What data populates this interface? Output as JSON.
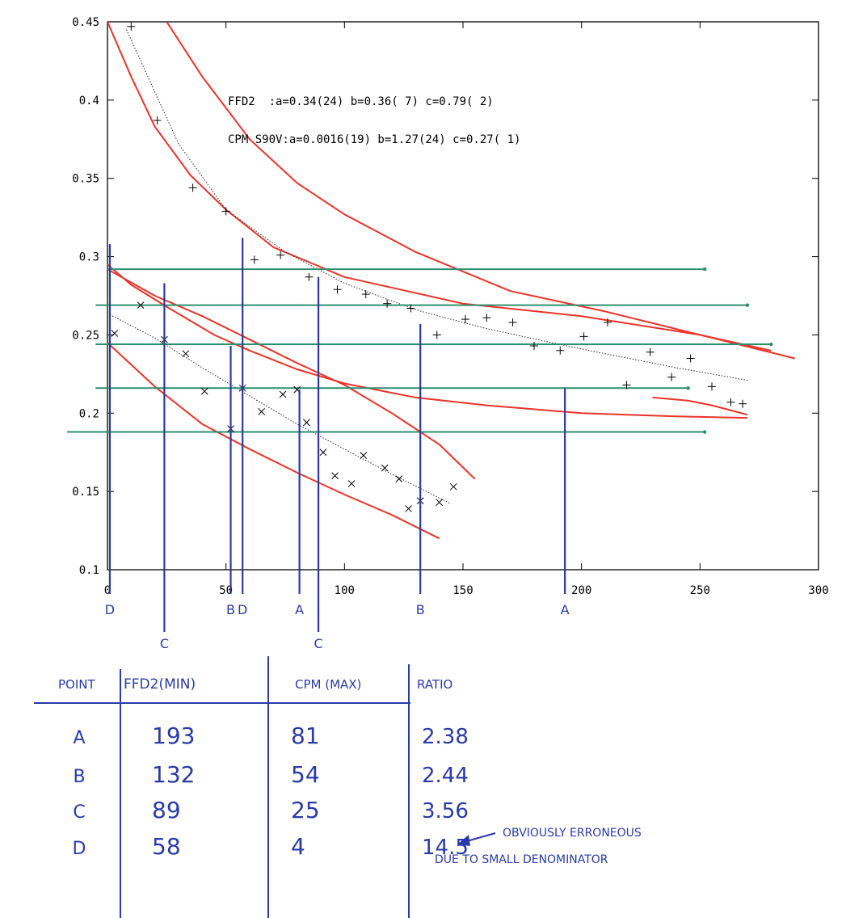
{
  "chart_data": {
    "type": "scatter",
    "xlim": [
      0,
      300
    ],
    "ylim": [
      0.1,
      0.45
    ],
    "x_ticks": [
      "0",
      "50",
      "100",
      "150",
      "200",
      "250",
      "300"
    ],
    "y_ticks": [
      "0.1",
      "0.15",
      "0.2",
      "0.25",
      "0.3",
      "0.35",
      "0.4",
      "0.45"
    ],
    "grid": false,
    "annotations": [
      "FFD2  :a=0.34(24) b=0.36( 7) c=0.79( 2)",
      "CPM S90V:a=0.0016(19) b=1.27(24) c=0.27( 1)"
    ],
    "series": [
      {
        "marker": "+",
        "color": "#000000",
        "points": [
          [
            10,
            0.447
          ],
          [
            21,
            0.387
          ],
          [
            36,
            0.344
          ],
          [
            50,
            0.329
          ],
          [
            62,
            0.298
          ],
          [
            73,
            0.301
          ],
          [
            85,
            0.287
          ],
          [
            97,
            0.279
          ],
          [
            109,
            0.276
          ],
          [
            118,
            0.27
          ],
          [
            128,
            0.267
          ],
          [
            139,
            0.25
          ],
          [
            151,
            0.26
          ],
          [
            160,
            0.261
          ],
          [
            171,
            0.258
          ],
          [
            180,
            0.243
          ],
          [
            191,
            0.24
          ],
          [
            201,
            0.249
          ],
          [
            211,
            0.258
          ],
          [
            219,
            0.218
          ],
          [
            229,
            0.239
          ],
          [
            238,
            0.223
          ],
          [
            246,
            0.235
          ],
          [
            255,
            0.217
          ],
          [
            263,
            0.207
          ],
          [
            268,
            0.206
          ]
        ]
      },
      {
        "marker": "x",
        "color": "#000000",
        "points": [
          [
            3,
            0.251
          ],
          [
            14,
            0.269
          ],
          [
            24,
            0.247
          ],
          [
            33,
            0.238
          ],
          [
            41,
            0.214
          ],
          [
            52,
            0.19
          ],
          [
            57,
            0.216
          ],
          [
            65,
            0.201
          ],
          [
            74,
            0.212
          ],
          [
            80,
            0.215
          ],
          [
            84,
            0.194
          ],
          [
            91,
            0.175
          ],
          [
            96,
            0.16
          ],
          [
            103,
            0.155
          ],
          [
            108,
            0.173
          ],
          [
            117,
            0.165
          ],
          [
            123,
            0.158
          ],
          [
            127,
            0.139
          ],
          [
            132,
            0.144
          ],
          [
            140,
            0.143
          ],
          [
            146,
            0.153
          ]
        ]
      }
    ],
    "fits": [
      {
        "color": "#222222",
        "x": [
          8,
          30,
          50,
          75,
          100,
          130,
          160,
          200,
          240,
          270
        ],
        "y": [
          0.445,
          0.372,
          0.33,
          0.303,
          0.283,
          0.266,
          0.254,
          0.241,
          0.229,
          0.221
        ]
      },
      {
        "color": "#222222",
        "x": [
          1,
          20,
          40,
          60,
          80,
          100,
          120,
          145
        ],
        "y": [
          0.263,
          0.248,
          0.229,
          0.211,
          0.193,
          0.177,
          0.161,
          0.142
        ]
      }
    ],
    "bands": [
      {
        "color": "#e8332a",
        "x": [
          0,
          10,
          20,
          35,
          50,
          70,
          100,
          150,
          200,
          250,
          290
        ],
        "y": [
          0.45,
          0.415,
          0.383,
          0.352,
          0.33,
          0.306,
          0.287,
          0.27,
          0.262,
          0.25,
          0.235
        ]
      },
      {
        "color": "#e8332a",
        "x": [
          25,
          40,
          60,
          80,
          100,
          130,
          170,
          210,
          250,
          280
        ],
        "y": [
          0.45,
          0.415,
          0.375,
          0.347,
          0.327,
          0.303,
          0.278,
          0.265,
          0.25,
          0.24
        ]
      },
      {
        "color": "#e8332a",
        "x": [
          0,
          10,
          25,
          45,
          60,
          80,
          100,
          130,
          160,
          200,
          240,
          270
        ],
        "y": [
          0.295,
          0.282,
          0.268,
          0.25,
          0.24,
          0.228,
          0.219,
          0.21,
          0.205,
          0.2,
          0.198,
          0.197
        ]
      },
      {
        "color": "#e8332a",
        "x": [
          0,
          20,
          40,
          60,
          80,
          100,
          120,
          140,
          155
        ],
        "y": [
          0.292,
          0.275,
          0.262,
          0.247,
          0.232,
          0.218,
          0.2,
          0.18,
          0.158
        ]
      },
      {
        "color": "#e8332a",
        "x": [
          0,
          20,
          40,
          60,
          80,
          100,
          120,
          140
        ],
        "y": [
          0.245,
          0.217,
          0.193,
          0.177,
          0.162,
          0.148,
          0.135,
          0.12
        ]
      },
      {
        "color": "#e8332a",
        "x": [
          230,
          245,
          255,
          270
        ],
        "y": [
          0.21,
          0.208,
          0.205,
          0.199
        ]
      }
    ],
    "hlines": [
      {
        "y": 0.292,
        "x0": 0,
        "x1": 252
      },
      {
        "y": 0.269,
        "x0": -5,
        "x1": 270
      },
      {
        "y": 0.244,
        "x0": -5,
        "x1": 280
      },
      {
        "y": 0.216,
        "x0": -5,
        "x1": 245
      },
      {
        "y": 0.188,
        "x0": -17,
        "x1": 252
      }
    ],
    "hline_color": "#2f8f6f",
    "vlines": [
      {
        "label": "D",
        "x": 1,
        "y_top": 0.308,
        "label_row": 1
      },
      {
        "label": "C",
        "x": 24,
        "y_top": 0.283,
        "label_row": 2
      },
      {
        "label": "B",
        "x": 52,
        "y_top": 0.243,
        "label_row": 1
      },
      {
        "label": "D",
        "x": 57,
        "y_top": 0.312,
        "label_row": 1
      },
      {
        "label": "A",
        "x": 81,
        "y_top": 0.215,
        "label_row": 1
      },
      {
        "label": "C",
        "x": 89,
        "y_top": 0.287,
        "label_row": 2
      },
      {
        "label": "B",
        "x": 132,
        "y_top": 0.257,
        "label_row": 1
      },
      {
        "label": "A",
        "x": 193,
        "y_top": 0.216,
        "label_row": 1
      }
    ],
    "vline_color": "#2a3aa6",
    "table": {
      "headers": [
        "POINT",
        "FFD2(MIN)",
        "CPM (MAX)",
        "RATIO"
      ],
      "rows": [
        [
          "A",
          "193",
          "81",
          "2.38"
        ],
        [
          "B",
          "132",
          "54",
          "2.44"
        ],
        [
          "C",
          "89",
          "25",
          "3.56"
        ],
        [
          "D",
          "58",
          "4",
          "14.5"
        ]
      ],
      "note_line1": "OBVIOUSLY ERRONEOUS",
      "note_line2": "DUE TO SMALL DENOMINATOR"
    }
  }
}
